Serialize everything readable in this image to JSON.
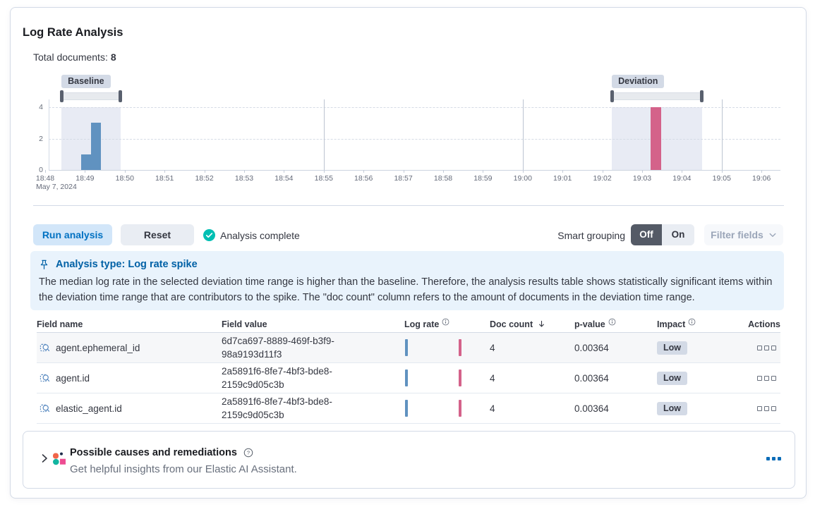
{
  "card": {
    "title": "Log Rate Analysis",
    "total_documents": {
      "label": "Total documents:",
      "value": "8"
    }
  },
  "chart_data": {
    "type": "bar",
    "x_axis": {
      "tick_labels": [
        "18:48",
        "18:49",
        "18:50",
        "18:51",
        "18:52",
        "18:53",
        "18:54",
        "18:55",
        "18:56",
        "18:57",
        "18:58",
        "18:59",
        "19:00",
        "19:01",
        "19:02",
        "19:03",
        "19:04",
        "19:05",
        "19:06"
      ],
      "date_label": "May 7, 2024",
      "major_gridlines": [
        "18:55",
        "19:00",
        "19:05"
      ]
    },
    "y_axis": {
      "ticks": [
        0,
        2,
        4
      ],
      "ylim": [
        0,
        4
      ]
    },
    "series": [
      {
        "name": "baseline",
        "color": "#6092c0",
        "bars": [
          {
            "t": 0.9,
            "w": 0.25,
            "value": 1
          },
          {
            "t": 1.15,
            "w": 0.25,
            "value": 3
          }
        ]
      },
      {
        "name": "deviation",
        "color": "#d4628a",
        "bars": [
          {
            "t": 15.22,
            "w": 0.26,
            "value": 4
          }
        ]
      }
    ],
    "windows": [
      {
        "name": "baseline",
        "label": "Baseline",
        "from": 0.41,
        "to": 1.9
      },
      {
        "name": "deviation",
        "label": "Deviation",
        "from": 14.24,
        "to": 16.51
      }
    ]
  },
  "controls": {
    "run_button": "Run analysis",
    "reset_button": "Reset",
    "status": "Analysis complete",
    "smart_grouping_label": "Smart grouping",
    "smart_grouping_off": "Off",
    "smart_grouping_on": "On",
    "filter_fields_button": "Filter fields"
  },
  "callout": {
    "title": "Analysis type: Log rate spike",
    "body": "The median log rate in the selected deviation time range is higher than the baseline. Therefore, the analysis results table shows statistically significant items within the deviation time range that are contributors to the spike. The \"doc count\" column refers to the amount of documents in the deviation time range."
  },
  "table": {
    "columns": [
      {
        "label": "Field name"
      },
      {
        "label": "Field value"
      },
      {
        "label": "Log rate",
        "info": true
      },
      {
        "label": "Doc count",
        "sort": "desc"
      },
      {
        "label": "p-value",
        "info": true
      },
      {
        "label": "Impact",
        "info": true
      },
      {
        "label": "Actions",
        "align": "right"
      }
    ],
    "rows": [
      {
        "field_name": "agent.ephemeral_id",
        "field_value": "6d7ca697-8889-469f-b3f9-98a9193d11f3",
        "doc_count": "4",
        "p_value": "0.00364",
        "impact": "Low"
      },
      {
        "field_name": "agent.id",
        "field_value": "2a5891f6-8fe7-4bf3-bde8-2159c9d05c3b",
        "doc_count": "4",
        "p_value": "0.00364",
        "impact": "Low"
      },
      {
        "field_name": "elastic_agent.id",
        "field_value": "2a5891f6-8fe7-4bf3-bde8-2159c9d05c3b",
        "doc_count": "4",
        "p_value": "0.00364",
        "impact": "Low"
      }
    ]
  },
  "footer_panel": {
    "title": "Possible causes and remediations",
    "subtitle": "Get helpful insights from our Elastic AI Assistant."
  },
  "colors": {
    "accent_blue": "#0071c2",
    "baseline_bar": "#6092c0",
    "deviation_bar": "#d4628a",
    "success_teal": "#00bfb3",
    "badge_bg": "#d3dae6",
    "callout_bg": "#e9f3fc",
    "border": "#d3dae6"
  }
}
